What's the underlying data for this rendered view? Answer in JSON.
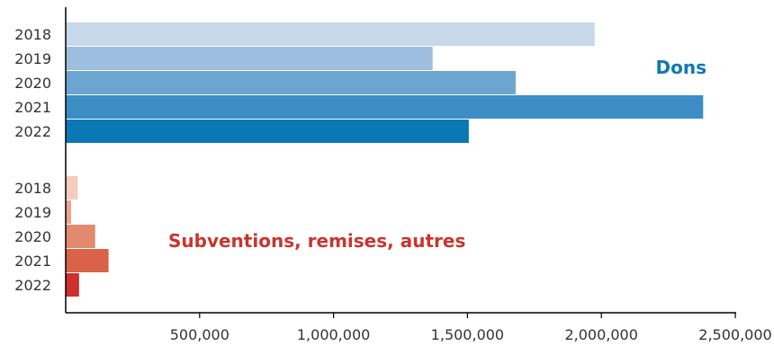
{
  "chart_data": {
    "type": "bar",
    "orientation": "horizontal",
    "xlim": [
      0,
      2500000
    ],
    "x_ticks": [
      500000,
      1000000,
      1500000,
      2000000,
      2500000
    ],
    "x_tick_labels": [
      "500,000",
      "1,000,000",
      "1,500,000",
      "2,000,000",
      "2,500,000"
    ],
    "grid": false,
    "groups": [
      {
        "annotation": "Dons",
        "annotation_color": "#0E7AB5",
        "categories": [
          "2018",
          "2019",
          "2020",
          "2021",
          "2022"
        ],
        "values": [
          1975000,
          1370000,
          1680000,
          2380000,
          1505000
        ],
        "colors": [
          "#C6D8EA",
          "#9DBEDE",
          "#6CA5D0",
          "#3B8DC4",
          "#0A78B4"
        ]
      },
      {
        "annotation": "Subventions, remises, autres",
        "annotation_color": "#C9352D",
        "categories": [
          "2018",
          "2019",
          "2020",
          "2021",
          "2022"
        ],
        "values": [
          45000,
          20000,
          110000,
          160000,
          50000
        ],
        "colors": [
          "#F3CDBD",
          "#EAA48D",
          "#E18A6F",
          "#DA6249",
          "#CF2F2D"
        ]
      }
    ]
  }
}
